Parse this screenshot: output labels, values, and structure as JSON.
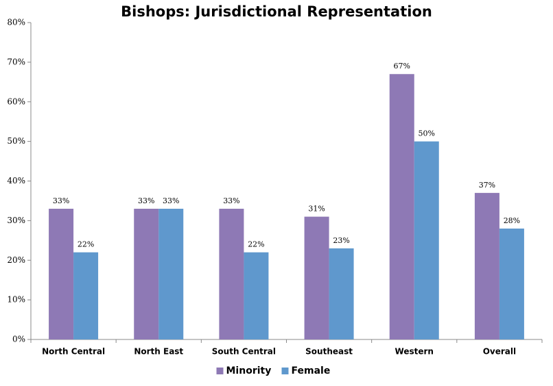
{
  "chart_data": {
    "type": "bar",
    "title": "Bishops: Jurisdictional Representation",
    "categories": [
      "North Central",
      "North East",
      "South Central",
      "Southeast",
      "Western",
      "Overall"
    ],
    "series": [
      {
        "name": "Minority",
        "color": "#8e79b5",
        "values": [
          33,
          33,
          33,
          31,
          67,
          37
        ],
        "value_labels": [
          "33%",
          "33%",
          "33%",
          "31%",
          "67%",
          "37%"
        ]
      },
      {
        "name": "Female",
        "color": "#5f98cd",
        "values": [
          22,
          33,
          22,
          23,
          50,
          28
        ],
        "value_labels": [
          "22%",
          "33%",
          "22%",
          "23%",
          "50%",
          "28%"
        ]
      }
    ],
    "ylim": [
      0,
      80
    ],
    "yticks": [
      {
        "value": 0,
        "label": "0%"
      },
      {
        "value": 10,
        "label": "10%"
      },
      {
        "value": 20,
        "label": "20%"
      },
      {
        "value": 30,
        "label": "30%"
      },
      {
        "value": 40,
        "label": "40%"
      },
      {
        "value": 50,
        "label": "50%"
      },
      {
        "value": 60,
        "label": "60%"
      },
      {
        "value": 70,
        "label": "70%"
      },
      {
        "value": 80,
        "label": "80%"
      }
    ],
    "grid": false,
    "legend": "bottom"
  }
}
